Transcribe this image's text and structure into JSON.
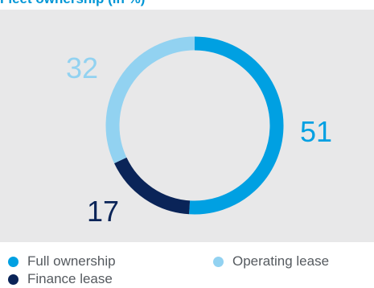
{
  "chart_data": {
    "type": "pie",
    "title": "Fleet ownership (in %)",
    "series": [
      {
        "name": "Full ownership",
        "value": 51,
        "color": "#00a0e2"
      },
      {
        "name": "Finance lease",
        "value": 17,
        "color": "#0a2458"
      },
      {
        "name": "Operating lease",
        "value": 32,
        "color": "#92d2f1"
      }
    ],
    "style": "donut"
  },
  "colors": {
    "panel_background": "#e8e8e9",
    "title": "#0096d6",
    "legend_text": "#555a5f"
  }
}
